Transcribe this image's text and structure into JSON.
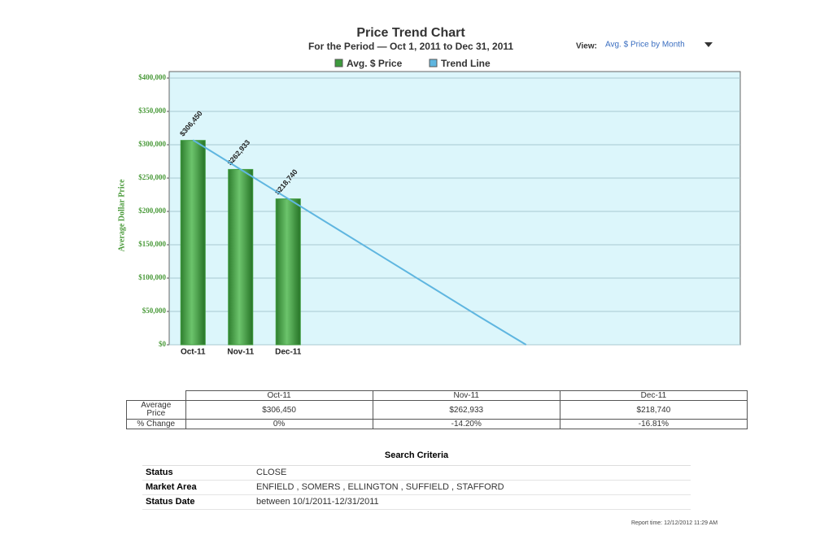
{
  "chart_data": {
    "type": "bar",
    "title": "Price Trend Chart",
    "subtitle": "For the Period — Oct 1, 2011 to Dec 31, 2011",
    "view_label": "View:",
    "view_value": "Avg. $ Price by Month",
    "y_label": "Average Dollar Price",
    "categories": [
      "Oct-11",
      "Nov-11",
      "Dec-11",
      null,
      null,
      null,
      null,
      null,
      null,
      null,
      null,
      null
    ],
    "series": [
      {
        "name": "Avg. $ Price",
        "type": "bar",
        "color": "#3d9a3d",
        "values": [
          306450,
          262933,
          218740,
          null,
          null,
          null,
          null,
          null,
          null,
          null,
          null,
          null
        ],
        "value_labels": [
          "$306,450",
          "$262,933",
          "$218,740",
          null,
          null,
          null,
          null,
          null,
          null,
          null,
          null,
          null
        ]
      },
      {
        "name": "Trend Line",
        "type": "line",
        "color": "#5fb6e0",
        "values": [
          307000,
          263000,
          219000,
          175000,
          131000,
          87000,
          43000,
          0,
          null,
          null,
          null,
          null
        ]
      }
    ],
    "ylim": [
      0,
      400000
    ],
    "yticks": [
      {
        "value": 0,
        "label": "$0"
      },
      {
        "value": 50000,
        "label": "$50,000"
      },
      {
        "value": 100000,
        "label": "$100,000"
      },
      {
        "value": 150000,
        "label": "$150,000"
      },
      {
        "value": 200000,
        "label": "$200,000"
      },
      {
        "value": 250000,
        "label": "$250,000"
      },
      {
        "value": 300000,
        "label": "$300,000"
      },
      {
        "value": 350000,
        "label": "$350,000"
      },
      {
        "value": 400000,
        "label": "$400,000"
      }
    ],
    "grid": true
  },
  "table": {
    "columns": [
      "Oct-11",
      "Nov-11",
      "Dec-11"
    ],
    "rows": [
      {
        "label": "Average Price",
        "cells": [
          "$306,450",
          "$262,933",
          "$218,740"
        ]
      },
      {
        "label": "% Change",
        "cells": [
          "0%",
          "-14.20%",
          "-16.81%"
        ]
      }
    ]
  },
  "criteria": {
    "title": "Search Criteria",
    "rows": [
      [
        "Status",
        "CLOSE"
      ],
      [
        "Market Area",
        "ENFIELD , SOMERS , ELLINGTON , SUFFIELD , STAFFORD"
      ],
      [
        "Status Date",
        "between 10/1/2011-12/31/2011"
      ]
    ]
  },
  "report_time": "Report time: 12/12/2012 11:29 AM"
}
